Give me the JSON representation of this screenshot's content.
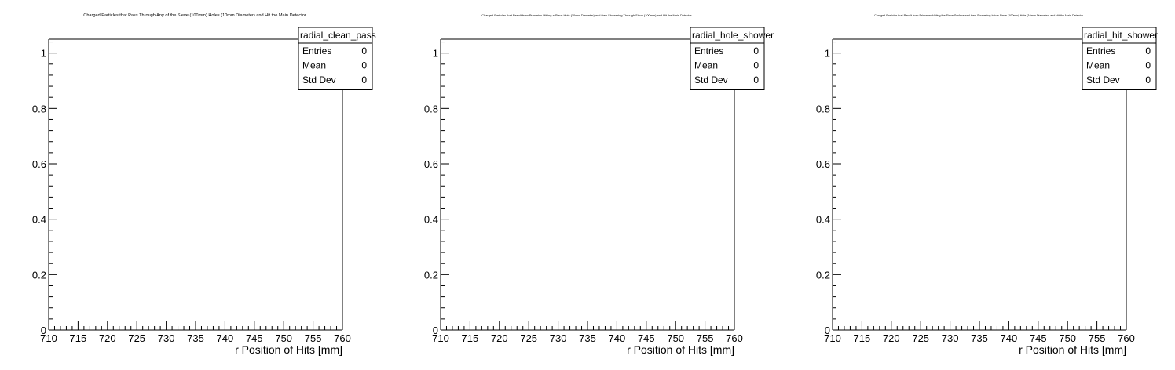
{
  "chart_data": [
    {
      "type": "histogram",
      "title": "Charged Particles that Pass Through Any of the Sieve (100mm) Holes (10mm Diameter) and Hit the Main Detector",
      "xlabel": "r Position of Hits [mm]",
      "ylabel": "",
      "xlim": [
        710,
        760
      ],
      "ylim": [
        0,
        1.05
      ],
      "x_ticks": [
        "710",
        "715",
        "720",
        "725",
        "730",
        "735",
        "740",
        "745",
        "750",
        "755",
        "760"
      ],
      "y_ticks": [
        "0",
        "0.2",
        "0.4",
        "0.6",
        "0.8",
        "1"
      ],
      "values": [],
      "stats": {
        "name": "radial_clean_pass",
        "rows": [
          {
            "label": "Entries",
            "value": "0"
          },
          {
            "label": "Mean",
            "value": "0"
          },
          {
            "label": "Std Dev",
            "value": "0"
          }
        ]
      }
    },
    {
      "type": "histogram",
      "title": "Charged Particles that Result from Primaries Hitting a Sieve Hole (10mm Diameter) and then Showering Through Sieve (100mm) and Hit the Main Detector",
      "xlabel": "r Position of Hits [mm]",
      "ylabel": "",
      "xlim": [
        710,
        760
      ],
      "ylim": [
        0,
        1.05
      ],
      "x_ticks": [
        "710",
        "715",
        "720",
        "725",
        "730",
        "735",
        "740",
        "745",
        "750",
        "755",
        "760"
      ],
      "y_ticks": [
        "0",
        "0.2",
        "0.4",
        "0.6",
        "0.8",
        "1"
      ],
      "values": [],
      "stats": {
        "name": "radial_hole_shower",
        "rows": [
          {
            "label": "Entries",
            "value": "0"
          },
          {
            "label": "Mean",
            "value": "0"
          },
          {
            "label": "Std Dev",
            "value": "0"
          }
        ]
      }
    },
    {
      "type": "histogram",
      "title": "Charged Particles that Result from Primaries Hitting the Sieve Surface and then Showering Into a Sieve (100mm) Hole (10mm Diameter) and Hit the Main Detector",
      "xlabel": "r Position of Hits [mm]",
      "ylabel": "",
      "xlim": [
        710,
        760
      ],
      "ylim": [
        0,
        1.05
      ],
      "x_ticks": [
        "710",
        "715",
        "720",
        "725",
        "730",
        "735",
        "740",
        "745",
        "750",
        "755",
        "760"
      ],
      "y_ticks": [
        "0",
        "0.2",
        "0.4",
        "0.6",
        "0.8",
        "1"
      ],
      "values": [],
      "stats": {
        "name": "radial_hit_shower",
        "rows": [
          {
            "label": "Entries",
            "value": "0"
          },
          {
            "label": "Mean",
            "value": "0"
          },
          {
            "label": "Std Dev",
            "value": "0"
          }
        ]
      }
    }
  ]
}
